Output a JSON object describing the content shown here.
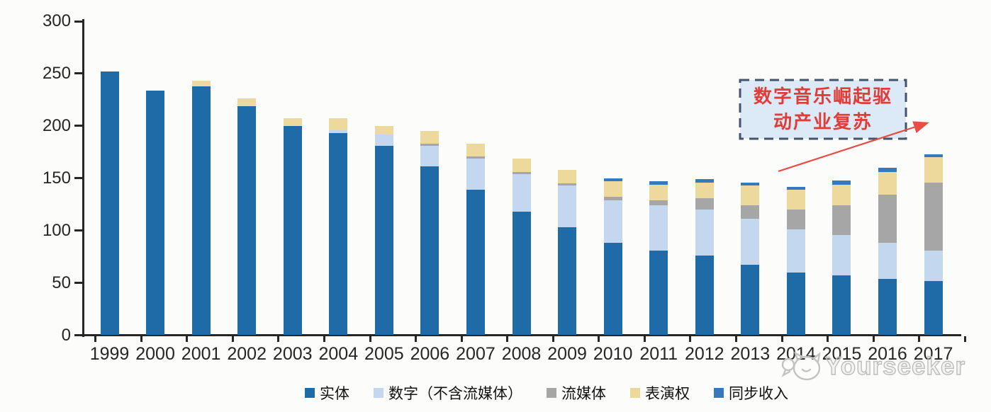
{
  "chart_data": {
    "type": "bar",
    "stacked": true,
    "title": "",
    "xlabel": "",
    "ylabel": "",
    "categories": [
      "1999",
      "2000",
      "2001",
      "2002",
      "2003",
      "2004",
      "2005",
      "2006",
      "2007",
      "2008",
      "2009",
      "2010",
      "2011",
      "2012",
      "2013",
      "2014",
      "2015",
      "2016",
      "2017"
    ],
    "series": [
      {
        "name": "实体",
        "color": "#1F6BA8",
        "values": [
          252,
          234,
          238,
          219,
          200,
          193,
          181,
          161,
          139,
          118,
          103,
          88,
          81,
          76,
          67,
          60,
          57,
          54,
          52
        ]
      },
      {
        "name": "数字（不含流媒体）",
        "color": "#C3D8EE",
        "values": [
          0,
          0,
          0,
          0,
          0,
          3,
          11,
          20,
          30,
          36,
          40,
          41,
          43,
          44,
          44,
          41,
          39,
          34,
          29
        ]
      },
      {
        "name": "流媒体",
        "color": "#A6A6A6",
        "values": [
          0,
          0,
          0,
          0,
          0,
          0,
          0,
          2,
          2,
          2,
          2,
          3,
          5,
          11,
          13,
          19,
          28,
          46,
          65
        ]
      },
      {
        "name": "表演权",
        "color": "#EDD99C",
        "values": [
          0,
          0,
          5,
          7,
          7,
          11,
          8,
          12,
          12,
          13,
          13,
          15,
          15,
          15,
          19,
          19,
          20,
          22,
          24
        ]
      },
      {
        "name": "同步收入",
        "color": "#3779BE",
        "values": [
          0,
          0,
          0,
          0,
          0,
          0,
          0,
          0,
          0,
          0,
          0,
          3,
          3,
          3,
          3,
          3,
          4,
          4,
          3
        ]
      }
    ],
    "ylim": [
      0,
      300
    ],
    "yticks": [
      0,
      50,
      100,
      150,
      200,
      250,
      300
    ],
    "grid": false,
    "legend_position": "bottom",
    "annotation": {
      "line1": "数字音乐崛起驱",
      "line2": "动产业复苏"
    }
  },
  "colors": {
    "annotation_text": "#E03C38",
    "annotation_fill": "#DCE9F7",
    "annotation_border": "#44546A",
    "arrow": "#E84C42",
    "axis": "#262626",
    "watermark": "#BDBDBD"
  },
  "watermark": {
    "text": "Yourseeker",
    "logo": "cat-face-logo"
  }
}
